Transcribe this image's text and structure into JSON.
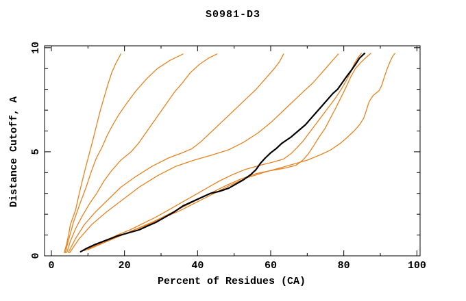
{
  "title": "S0981-D3",
  "axes": {
    "x": {
      "label": "Percent of Residues (CA)"
    },
    "y": {
      "label": "Distance Cutoff, A"
    }
  },
  "colors": {
    "model_line": "#e8821e",
    "highlight_line": "#000000",
    "axis": "#000000",
    "background": "#ffffff"
  },
  "chart_data": {
    "type": "line",
    "title": "S0981-D3",
    "xlabel": "Percent of Residues (CA)",
    "ylabel": "Distance Cutoff, A",
    "xlim": [
      0,
      100
    ],
    "ylim": [
      0,
      10
    ],
    "x_major_ticks": [
      0,
      20,
      40,
      60,
      80,
      100
    ],
    "x_minor_step": 10,
    "y_major_ticks": [
      0,
      5,
      10
    ],
    "y_minor_step": 1,
    "grid": false,
    "legend": false,
    "series": [
      {
        "name": "curve-1",
        "color": "#e8821e",
        "width": 1.3,
        "emphasized": false,
        "points": [
          [
            3.5,
            0.15
          ],
          [
            4.2,
            0.6
          ],
          [
            4.8,
            1.1
          ],
          [
            5.2,
            1.5
          ],
          [
            6,
            1.9
          ],
          [
            6.6,
            2.2
          ],
          [
            7.5,
            2.9
          ],
          [
            8.3,
            3.5
          ],
          [
            9.3,
            4.2
          ],
          [
            10.5,
            5
          ],
          [
            11.4,
            5.6
          ],
          [
            12.4,
            6.3
          ],
          [
            13.4,
            7
          ],
          [
            14.4,
            7.6
          ],
          [
            15.4,
            8.2
          ],
          [
            16.5,
            8.8
          ],
          [
            17.5,
            9.2
          ],
          [
            19,
            9.7
          ]
        ]
      },
      {
        "name": "curve-2",
        "color": "#e8821e",
        "width": 1.3,
        "emphasized": false,
        "points": [
          [
            3.8,
            0.15
          ],
          [
            4.6,
            0.7
          ],
          [
            5.4,
            1.2
          ],
          [
            6,
            1.6
          ],
          [
            6.8,
            2
          ],
          [
            8,
            2.6
          ],
          [
            9.5,
            3.3
          ],
          [
            11,
            4.1
          ],
          [
            12.3,
            4.7
          ],
          [
            13.8,
            5.2
          ],
          [
            15.3,
            5.8
          ],
          [
            16.8,
            6.3
          ],
          [
            18.5,
            6.8
          ],
          [
            20.5,
            7.3
          ],
          [
            23,
            7.9
          ],
          [
            26,
            8.5
          ],
          [
            29,
            9
          ],
          [
            32.5,
            9.4
          ],
          [
            36,
            9.7
          ]
        ]
      },
      {
        "name": "curve-3",
        "color": "#e8821e",
        "width": 1.3,
        "emphasized": false,
        "points": [
          [
            4.2,
            0.15
          ],
          [
            5.2,
            0.7
          ],
          [
            6.6,
            1.3
          ],
          [
            8.4,
            1.9
          ],
          [
            10.4,
            2.5
          ],
          [
            12.4,
            3
          ],
          [
            14.4,
            3.6
          ],
          [
            16.5,
            4.1
          ],
          [
            19,
            4.6
          ],
          [
            21.8,
            5
          ],
          [
            23.8,
            5.4
          ],
          [
            25.8,
            5.9
          ],
          [
            27.8,
            6.4
          ],
          [
            29.8,
            6.9
          ],
          [
            31.8,
            7.4
          ],
          [
            33.8,
            7.9
          ],
          [
            35.8,
            8.3
          ],
          [
            38,
            8.8
          ],
          [
            40.5,
            9.2
          ],
          [
            43,
            9.5
          ],
          [
            45.3,
            9.7
          ]
        ]
      },
      {
        "name": "curve-4",
        "color": "#e8821e",
        "width": 1.3,
        "emphasized": false,
        "points": [
          [
            4.6,
            0.15
          ],
          [
            6.5,
            0.8
          ],
          [
            9,
            1.5
          ],
          [
            12,
            2.1
          ],
          [
            15.5,
            2.7
          ],
          [
            19,
            3.3
          ],
          [
            23,
            3.8
          ],
          [
            27.5,
            4.3
          ],
          [
            32,
            4.7
          ],
          [
            35.8,
            4.95
          ],
          [
            38.5,
            5.15
          ],
          [
            41,
            5.5
          ],
          [
            44,
            6
          ],
          [
            47,
            6.5
          ],
          [
            50,
            7
          ],
          [
            53,
            7.5
          ],
          [
            56,
            8
          ],
          [
            58.5,
            8.5
          ],
          [
            61,
            9
          ],
          [
            62.5,
            9.35
          ],
          [
            63.5,
            9.7
          ]
        ]
      },
      {
        "name": "curve-5",
        "color": "#e8821e",
        "width": 1.3,
        "emphasized": false,
        "points": [
          [
            5,
            0.15
          ],
          [
            7.5,
            0.8
          ],
          [
            11,
            1.5
          ],
          [
            15,
            2.1
          ],
          [
            19.5,
            2.7
          ],
          [
            24,
            3.3
          ],
          [
            29,
            3.85
          ],
          [
            34,
            4.3
          ],
          [
            39,
            4.6
          ],
          [
            44,
            4.85
          ],
          [
            48.5,
            5.1
          ],
          [
            52.5,
            5.45
          ],
          [
            56.5,
            5.9
          ],
          [
            60,
            6.4
          ],
          [
            63,
            6.9
          ],
          [
            66,
            7.4
          ],
          [
            69,
            7.9
          ],
          [
            71.5,
            8.3
          ],
          [
            74,
            8.8
          ],
          [
            76,
            9.2
          ],
          [
            77.5,
            9.5
          ],
          [
            78.5,
            9.7
          ]
        ]
      },
      {
        "name": "curve-6",
        "color": "#e8821e",
        "width": 1.3,
        "emphasized": false,
        "points": [
          [
            9,
            0.25
          ],
          [
            12,
            0.5
          ],
          [
            15,
            0.75
          ],
          [
            18,
            1
          ],
          [
            21.5,
            1.25
          ],
          [
            25,
            1.55
          ],
          [
            28.5,
            1.85
          ],
          [
            32,
            2.2
          ],
          [
            35.5,
            2.55
          ],
          [
            39,
            2.9
          ],
          [
            42.5,
            3.25
          ],
          [
            46,
            3.6
          ],
          [
            49.5,
            3.9
          ],
          [
            53,
            4.15
          ],
          [
            57,
            4.35
          ],
          [
            60.5,
            4.5
          ],
          [
            63.5,
            4.65
          ],
          [
            65.5,
            4.9
          ],
          [
            67.2,
            5.2
          ],
          [
            68.8,
            5.5
          ],
          [
            70.3,
            5.85
          ],
          [
            71.8,
            6.2
          ],
          [
            73.3,
            6.55
          ],
          [
            74.8,
            6.9
          ],
          [
            76.3,
            7.25
          ],
          [
            77.8,
            7.6
          ],
          [
            79.3,
            8
          ],
          [
            80.6,
            8.4
          ],
          [
            81.8,
            8.8
          ],
          [
            82.8,
            9.2
          ],
          [
            83.8,
            9.5
          ],
          [
            84.8,
            9.73
          ]
        ]
      },
      {
        "name": "curve-7",
        "color": "#e8821e",
        "width": 1.3,
        "emphasized": false,
        "points": [
          [
            9.5,
            0.3
          ],
          [
            13,
            0.55
          ],
          [
            16.5,
            0.8
          ],
          [
            20,
            1.05
          ],
          [
            24,
            1.35
          ],
          [
            28,
            1.65
          ],
          [
            32,
            2
          ],
          [
            36,
            2.35
          ],
          [
            40,
            2.7
          ],
          [
            44,
            3.05
          ],
          [
            48,
            3.4
          ],
          [
            52,
            3.7
          ],
          [
            56,
            3.95
          ],
          [
            60,
            4.1
          ],
          [
            63.5,
            4.2
          ],
          [
            66.9,
            4.35
          ],
          [
            68.8,
            4.6
          ],
          [
            70.3,
            4.9
          ],
          [
            71.8,
            5.3
          ],
          [
            73.2,
            5.7
          ],
          [
            74.8,
            6.1
          ],
          [
            76.3,
            6.6
          ],
          [
            77.8,
            7.1
          ],
          [
            79.2,
            7.6
          ],
          [
            80.6,
            8.1
          ],
          [
            81.9,
            8.6
          ],
          [
            83.2,
            9
          ],
          [
            84.7,
            9.3
          ],
          [
            86.2,
            9.55
          ],
          [
            87.4,
            9.73
          ]
        ]
      },
      {
        "name": "curve-8",
        "color": "#e8821e",
        "width": 1.3,
        "emphasized": false,
        "points": [
          [
            10,
            0.3
          ],
          [
            14,
            0.6
          ],
          [
            18,
            0.9
          ],
          [
            22,
            1.2
          ],
          [
            26.5,
            1.5
          ],
          [
            31,
            1.85
          ],
          [
            35.5,
            2.2
          ],
          [
            40,
            2.6
          ],
          [
            44.5,
            3
          ],
          [
            49,
            3.4
          ],
          [
            53.5,
            3.75
          ],
          [
            58,
            4
          ],
          [
            62,
            4.2
          ],
          [
            66,
            4.4
          ],
          [
            70,
            4.6
          ],
          [
            73.5,
            4.85
          ],
          [
            76.5,
            5.1
          ],
          [
            79,
            5.4
          ],
          [
            81,
            5.7
          ],
          [
            82.8,
            6
          ],
          [
            84.3,
            6.3
          ],
          [
            85.4,
            6.6
          ],
          [
            86.2,
            7
          ],
          [
            86.9,
            7.4
          ],
          [
            88,
            7.7
          ],
          [
            89.7,
            7.95
          ],
          [
            90.4,
            8.2
          ],
          [
            91.1,
            8.6
          ],
          [
            91.9,
            9
          ],
          [
            92.7,
            9.35
          ],
          [
            93.4,
            9.6
          ],
          [
            94,
            9.73
          ]
        ]
      },
      {
        "name": "curve-9-highlight",
        "color": "#000000",
        "width": 2.2,
        "emphasized": true,
        "points": [
          [
            8,
            0.2
          ],
          [
            9.5,
            0.35
          ],
          [
            12,
            0.55
          ],
          [
            15,
            0.75
          ],
          [
            18,
            0.95
          ],
          [
            21,
            1.1
          ],
          [
            24,
            1.25
          ],
          [
            26.5,
            1.45
          ],
          [
            28.5,
            1.6
          ],
          [
            31,
            1.85
          ],
          [
            33.5,
            2.1
          ],
          [
            36,
            2.4
          ],
          [
            38.5,
            2.6
          ],
          [
            41,
            2.8
          ],
          [
            43.5,
            3
          ],
          [
            46,
            3.1
          ],
          [
            48.5,
            3.25
          ],
          [
            50.5,
            3.45
          ],
          [
            52.5,
            3.65
          ],
          [
            54.5,
            3.9
          ],
          [
            56,
            4.15
          ],
          [
            57.2,
            4.45
          ],
          [
            58.5,
            4.7
          ],
          [
            60,
            4.95
          ],
          [
            61.5,
            5.15
          ],
          [
            63,
            5.4
          ],
          [
            65.5,
            5.7
          ],
          [
            67.5,
            6
          ],
          [
            69.5,
            6.3
          ],
          [
            71,
            6.6
          ],
          [
            72.5,
            6.9
          ],
          [
            74,
            7.2
          ],
          [
            75.5,
            7.5
          ],
          [
            77,
            7.8
          ],
          [
            78.3,
            8
          ],
          [
            79.5,
            8.3
          ],
          [
            80.7,
            8.6
          ],
          [
            82,
            8.9
          ],
          [
            83.2,
            9.2
          ],
          [
            84.3,
            9.5
          ],
          [
            85.2,
            9.65
          ],
          [
            85.7,
            9.73
          ]
        ]
      }
    ]
  }
}
